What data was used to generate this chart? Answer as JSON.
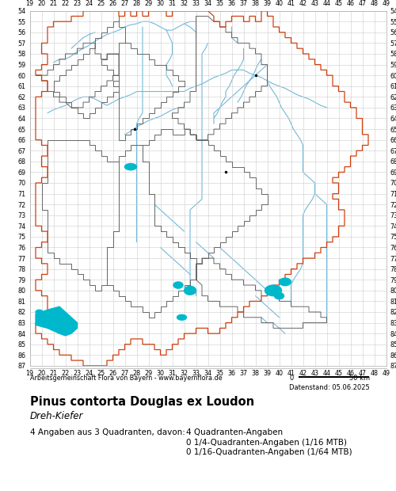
{
  "title": "Pinus contorta Douglas ex Loudon",
  "subtitle": "Dreh-Kiefer",
  "attribution": "Arbeitsgemeinschaft Flora von Bayern - www.bayernflora.de",
  "date_label": "Datenstand: 05.06.2025",
  "stats_line1": "4 Angaben aus 3 Quadranten, davon:",
  "stats_col2_line1": "4 Quadranten-Angaben",
  "stats_col2_line2": "0 1/4-Quadranten-Angaben (1/16 MTB)",
  "stats_col2_line3": "0 1/16-Quadranten-Angaben (1/64 MTB)",
  "x_ticks": [
    19,
    20,
    21,
    22,
    23,
    24,
    25,
    26,
    27,
    28,
    29,
    30,
    31,
    32,
    33,
    34,
    35,
    36,
    37,
    38,
    39,
    40,
    41,
    42,
    43,
    44,
    45,
    46,
    47,
    48,
    49
  ],
  "y_ticks": [
    54,
    55,
    56,
    57,
    58,
    59,
    60,
    61,
    62,
    63,
    64,
    65,
    66,
    67,
    68,
    69,
    70,
    71,
    72,
    73,
    74,
    75,
    76,
    77,
    78,
    79,
    80,
    81,
    82,
    83,
    84,
    85,
    86,
    87
  ],
  "x_min": 19,
  "x_max": 49,
  "y_min": 54,
  "y_max": 87,
  "grid_color": "#cccccc",
  "background_color": "#ffffff",
  "border_color_red": "#d04010",
  "border_color_gray": "#666666",
  "river_color": "#70b8d8",
  "dot_color": "#000000",
  "cyan_fill": "#00b8cc",
  "figsize": [
    5.0,
    6.2
  ],
  "dpi": 100
}
